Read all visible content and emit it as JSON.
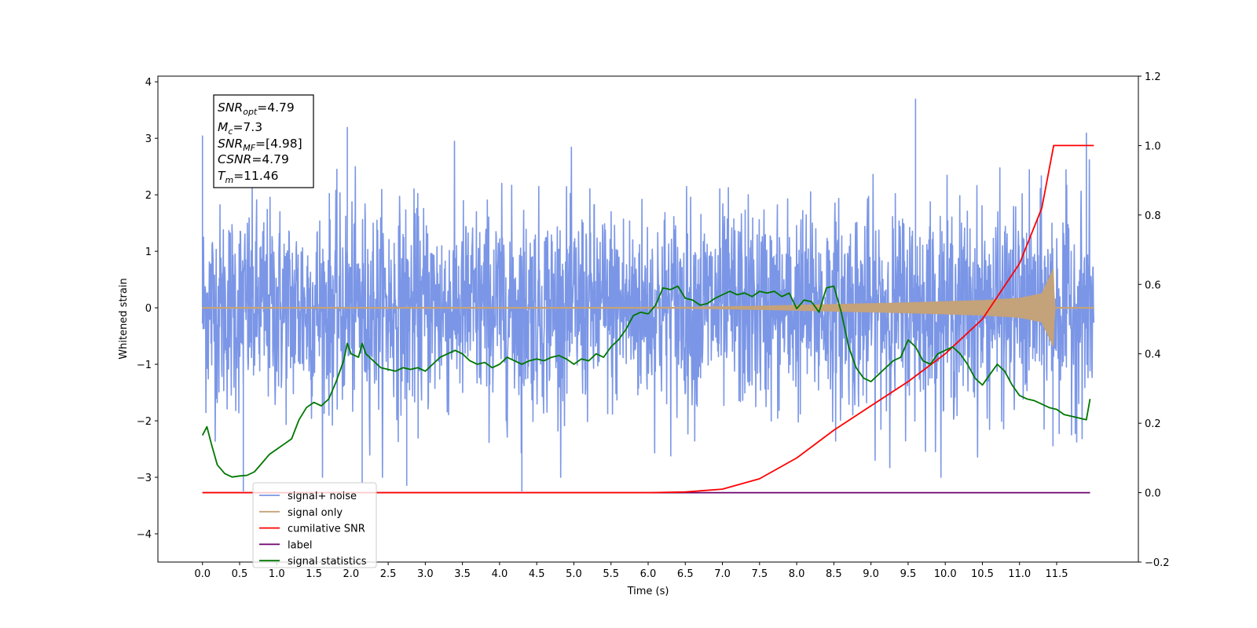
{
  "chart_data": {
    "type": "line",
    "title": "",
    "xlabel": "Time (s)",
    "ylabel": "Whitened strain",
    "y2label": "",
    "xlim": [
      -0.6,
      12.6
    ],
    "ylim": [
      -4.5,
      4.1
    ],
    "y2lim": [
      -0.2,
      1.2
    ],
    "x_ticks": [
      "0.0",
      "0.5",
      "1.0",
      "1.5",
      "2.0",
      "2.5",
      "3.0",
      "3.5",
      "4.0",
      "4.5",
      "5.0",
      "5.5",
      "6.0",
      "6.5",
      "7.0",
      "7.5",
      "8.0",
      "8.5",
      "9.0",
      "9.5",
      "10.0",
      "10.5",
      "11.0",
      "11.5"
    ],
    "y_ticks": [
      "4",
      "3",
      "2",
      "1",
      "0",
      "−1",
      "−2",
      "−3",
      "−4"
    ],
    "y2_ticks": [
      "1.2",
      "1.0",
      "0.8",
      "0.6",
      "0.4",
      "0.2",
      "0.0",
      "−0.2"
    ],
    "grid": false,
    "legend_position": "lower-left",
    "info_box": {
      "snr_opt_prefix": "SNR",
      "snr_opt_sub": "opt",
      "snr_opt_value": "=4.79",
      "mc_prefix": "M",
      "mc_sub": "c",
      "mc_value": "=7.3",
      "snr_mf_prefix": "SNR",
      "snr_mf_sub": "MF",
      "snr_mf_value": "=[4.98]",
      "csnr_prefix": "CSNR",
      "csnr_value": "=4.79",
      "tm_prefix": "T",
      "tm_sub": "m",
      "tm_value": "=11.46"
    },
    "series": [
      {
        "name": "signal+ noise",
        "axis": "left",
        "color": "#7b96e6",
        "description_of_values": "whitened noise, approx. within -3.2 to 3.7",
        "x_range": [
          0.0,
          12.0
        ],
        "noise_std": 0.9,
        "peaks": [
          [
            0.0,
            3.05
          ],
          [
            0.55,
            -3.25
          ],
          [
            1.95,
            3.2
          ],
          [
            2.15,
            -3.1
          ],
          [
            2.75,
            -3.15
          ],
          [
            4.3,
            -3.25
          ],
          [
            9.6,
            3.7
          ],
          [
            11.45,
            -2.45
          ],
          [
            11.9,
            3.1
          ]
        ]
      },
      {
        "name": "signal only",
        "axis": "left",
        "color": "#c4a27a",
        "description_of_values": "chirp starting near 6.5 s, peak amplitude about 0.7 at 11.46 s, zero after",
        "x": [
          0.0,
          6.5,
          7.5,
          8.5,
          9.5,
          10.5,
          11.0,
          11.3,
          11.46,
          11.47,
          12.0
        ],
        "envelope": [
          0.0,
          0.01,
          0.03,
          0.06,
          0.09,
          0.13,
          0.17,
          0.25,
          0.7,
          0.0,
          0.0
        ]
      },
      {
        "name": "cumilative SNR",
        "axis": "right",
        "color": "#ff0000",
        "x": [
          0.0,
          6.0,
          6.5,
          7.0,
          7.5,
          8.0,
          8.5,
          9.0,
          9.5,
          10.0,
          10.5,
          11.0,
          11.3,
          11.46,
          12.0
        ],
        "values": [
          0.0,
          0.0,
          0.002,
          0.01,
          0.04,
          0.1,
          0.18,
          0.25,
          0.32,
          0.4,
          0.5,
          0.66,
          0.82,
          1.0,
          1.0
        ]
      },
      {
        "name": "label",
        "axis": "right",
        "color": "#6c006c",
        "x": [
          0.0,
          11.95
        ],
        "values": [
          0.0,
          0.0
        ]
      },
      {
        "name": "signal statistics",
        "axis": "right",
        "color": "#007700",
        "x": [
          0.0,
          0.06,
          0.12,
          0.2,
          0.3,
          0.4,
          0.5,
          0.6,
          0.7,
          0.8,
          0.9,
          1.0,
          1.1,
          1.2,
          1.3,
          1.4,
          1.5,
          1.6,
          1.7,
          1.8,
          1.9,
          1.95,
          2.0,
          2.1,
          2.15,
          2.2,
          2.3,
          2.4,
          2.5,
          2.6,
          2.7,
          2.8,
          2.9,
          3.0,
          3.1,
          3.2,
          3.3,
          3.4,
          3.5,
          3.6,
          3.7,
          3.8,
          3.9,
          4.0,
          4.1,
          4.2,
          4.3,
          4.4,
          4.5,
          4.6,
          4.7,
          4.8,
          4.9,
          5.0,
          5.1,
          5.2,
          5.3,
          5.4,
          5.5,
          5.6,
          5.7,
          5.8,
          5.9,
          6.0,
          6.1,
          6.2,
          6.3,
          6.4,
          6.5,
          6.6,
          6.7,
          6.8,
          6.9,
          7.0,
          7.1,
          7.2,
          7.3,
          7.4,
          7.5,
          7.6,
          7.7,
          7.8,
          7.9,
          8.0,
          8.1,
          8.2,
          8.3,
          8.4,
          8.5,
          8.6,
          8.7,
          8.8,
          8.9,
          9.0,
          9.1,
          9.2,
          9.3,
          9.4,
          9.5,
          9.6,
          9.7,
          9.8,
          9.9,
          10.0,
          10.1,
          10.2,
          10.3,
          10.4,
          10.5,
          10.6,
          10.7,
          10.8,
          10.9,
          11.0,
          11.1,
          11.2,
          11.3,
          11.4,
          11.5,
          11.6,
          11.7,
          11.8,
          11.9,
          11.95
        ],
        "values": [
          0.165,
          0.19,
          0.14,
          0.08,
          0.055,
          0.045,
          0.048,
          0.05,
          0.06,
          0.085,
          0.11,
          0.125,
          0.14,
          0.155,
          0.21,
          0.245,
          0.26,
          0.25,
          0.27,
          0.32,
          0.38,
          0.43,
          0.4,
          0.39,
          0.43,
          0.4,
          0.38,
          0.36,
          0.355,
          0.35,
          0.36,
          0.355,
          0.36,
          0.35,
          0.37,
          0.39,
          0.4,
          0.41,
          0.4,
          0.38,
          0.37,
          0.375,
          0.36,
          0.37,
          0.39,
          0.38,
          0.37,
          0.38,
          0.385,
          0.38,
          0.39,
          0.395,
          0.385,
          0.37,
          0.385,
          0.38,
          0.4,
          0.39,
          0.42,
          0.44,
          0.47,
          0.51,
          0.52,
          0.515,
          0.54,
          0.59,
          0.585,
          0.595,
          0.56,
          0.555,
          0.54,
          0.545,
          0.56,
          0.57,
          0.58,
          0.57,
          0.575,
          0.565,
          0.58,
          0.575,
          0.58,
          0.565,
          0.575,
          0.53,
          0.555,
          0.55,
          0.52,
          0.59,
          0.595,
          0.52,
          0.42,
          0.36,
          0.33,
          0.32,
          0.34,
          0.36,
          0.38,
          0.39,
          0.44,
          0.42,
          0.38,
          0.37,
          0.4,
          0.41,
          0.42,
          0.4,
          0.37,
          0.33,
          0.31,
          0.34,
          0.37,
          0.35,
          0.31,
          0.28,
          0.27,
          0.265,
          0.255,
          0.245,
          0.24,
          0.225,
          0.22,
          0.215,
          0.21,
          0.27
        ]
      }
    ]
  }
}
